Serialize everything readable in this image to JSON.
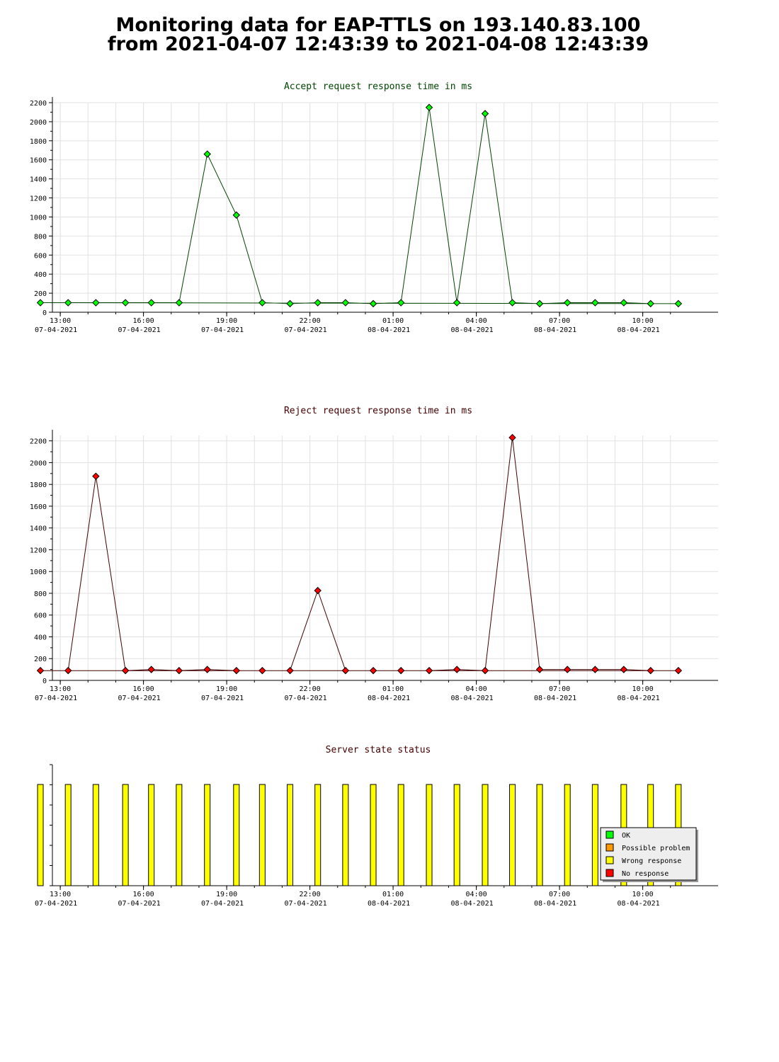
{
  "page": {
    "title_line1": "Monitoring data for EAP-TTLS on 193.140.83.100",
    "title_line2": "from 2021-04-07 12:43:39 to 2021-04-08 12:43:39"
  },
  "chart_data": [
    {
      "type": "line",
      "title": "Accept request response time in ms",
      "title_color": "#004400",
      "line_color": "#004400",
      "marker_color": "#00ff00",
      "xlabel": "",
      "ylabel": "",
      "x_start": "07-04-2021 12:43",
      "x_end": "08-04-2021 12:43",
      "x_ticks": [
        {
          "time": "13:00",
          "date": "07-04-2021"
        },
        {
          "time": "16:00",
          "date": "07-04-2021"
        },
        {
          "time": "19:00",
          "date": "07-04-2021"
        },
        {
          "time": "22:00",
          "date": "07-04-2021"
        },
        {
          "time": "01:00",
          "date": "08-04-2021"
        },
        {
          "time": "04:00",
          "date": "08-04-2021"
        },
        {
          "time": "07:00",
          "date": "08-04-2021"
        },
        {
          "time": "10:00",
          "date": "08-04-2021"
        }
      ],
      "y_ticks": [
        0,
        200,
        400,
        600,
        800,
        1000,
        1200,
        1400,
        1600,
        1800,
        2000,
        2200
      ],
      "ylim": [
        0,
        2200
      ],
      "grid": true,
      "series": [
        {
          "points": [
            {
              "x": "13:17",
              "y": 100
            },
            {
              "x": "14:17",
              "y": 100
            },
            {
              "x": "15:21",
              "y": 100
            },
            {
              "x": "16:17",
              "y": 100
            },
            {
              "x": "17:17",
              "y": 100
            },
            {
              "x": "18:18",
              "y": 1660
            },
            {
              "x": "19:21",
              "y": 1020
            },
            {
              "x": "20:17",
              "y": 100
            },
            {
              "x": "21:17",
              "y": 90
            },
            {
              "x": "22:17",
              "y": 100
            },
            {
              "x": "23:17",
              "y": 100
            },
            {
              "x": "00:17",
              "y": 90
            },
            {
              "x": "01:17",
              "y": 100
            },
            {
              "x": "02:18",
              "y": 2150
            },
            {
              "x": "03:18",
              "y": 100
            },
            {
              "x": "04:19",
              "y": 2085
            },
            {
              "x": "05:18",
              "y": 100
            },
            {
              "x": "06:17",
              "y": 90
            },
            {
              "x": "07:17",
              "y": 100
            },
            {
              "x": "08:17",
              "y": 100
            },
            {
              "x": "09:19",
              "y": 100
            },
            {
              "x": "10:17",
              "y": 90
            },
            {
              "x": "11:17",
              "y": 90
            },
            {
              "x": "12:17",
              "y": 100
            }
          ]
        }
      ]
    },
    {
      "type": "line",
      "title": "Reject request response time in ms",
      "title_color": "#440000",
      "line_color": "#440000",
      "marker_color": "#ff0000",
      "xlabel": "",
      "ylabel": "",
      "x_start": "07-04-2021 12:43",
      "x_end": "08-04-2021 12:43",
      "x_ticks": [
        {
          "time": "13:00",
          "date": "07-04-2021"
        },
        {
          "time": "16:00",
          "date": "07-04-2021"
        },
        {
          "time": "19:00",
          "date": "07-04-2021"
        },
        {
          "time": "22:00",
          "date": "07-04-2021"
        },
        {
          "time": "01:00",
          "date": "08-04-2021"
        },
        {
          "time": "04:00",
          "date": "08-04-2021"
        },
        {
          "time": "07:00",
          "date": "08-04-2021"
        },
        {
          "time": "10:00",
          "date": "08-04-2021"
        }
      ],
      "y_ticks": [
        0,
        200,
        400,
        600,
        800,
        1000,
        1200,
        1400,
        1600,
        1800,
        2000,
        2200
      ],
      "ylim": [
        0,
        2250
      ],
      "grid": true,
      "series": [
        {
          "points": [
            {
              "x": "13:17",
              "y": 90
            },
            {
              "x": "14:17",
              "y": 1875
            },
            {
              "x": "15:21",
              "y": 90
            },
            {
              "x": "16:17",
              "y": 100
            },
            {
              "x": "17:17",
              "y": 90
            },
            {
              "x": "18:18",
              "y": 100
            },
            {
              "x": "19:21",
              "y": 90
            },
            {
              "x": "20:17",
              "y": 90
            },
            {
              "x": "21:17",
              "y": 90
            },
            {
              "x": "22:17",
              "y": 825
            },
            {
              "x": "23:17",
              "y": 90
            },
            {
              "x": "00:17",
              "y": 90
            },
            {
              "x": "01:17",
              "y": 90
            },
            {
              "x": "02:18",
              "y": 90
            },
            {
              "x": "03:18",
              "y": 100
            },
            {
              "x": "04:19",
              "y": 90
            },
            {
              "x": "05:18",
              "y": 2230
            },
            {
              "x": "06:17",
              "y": 100
            },
            {
              "x": "07:17",
              "y": 100
            },
            {
              "x": "08:17",
              "y": 100
            },
            {
              "x": "09:19",
              "y": 100
            },
            {
              "x": "10:17",
              "y": 90
            },
            {
              "x": "11:17",
              "y": 90
            },
            {
              "x": "12:17",
              "y": 90
            }
          ]
        }
      ]
    },
    {
      "type": "bar",
      "title": "Server state status",
      "title_color": "#440000",
      "xlabel": "",
      "ylabel": "",
      "x_start": "07-04-2021 12:43",
      "x_end": "08-04-2021 12:43",
      "x_ticks": [
        {
          "time": "13:00",
          "date": "07-04-2021"
        },
        {
          "time": "16:00",
          "date": "07-04-2021"
        },
        {
          "time": "19:00",
          "date": "07-04-2021"
        },
        {
          "time": "22:00",
          "date": "07-04-2021"
        },
        {
          "time": "01:00",
          "date": "08-04-2021"
        },
        {
          "time": "04:00",
          "date": "08-04-2021"
        },
        {
          "time": "07:00",
          "date": "08-04-2021"
        },
        {
          "time": "10:00",
          "date": "08-04-2021"
        }
      ],
      "legend": {
        "placement": "bottom-right",
        "items": [
          {
            "label": "OK",
            "color": "#00ff00"
          },
          {
            "label": "Possible problem",
            "color": "#ff9900"
          },
          {
            "label": "Wrong response",
            "color": "#ffff00"
          },
          {
            "label": "No response",
            "color": "#ff0000"
          }
        ]
      },
      "bars": [
        {
          "x": "13:17",
          "state": "Wrong response"
        },
        {
          "x": "14:17",
          "state": "Wrong response"
        },
        {
          "x": "15:21",
          "state": "Wrong response"
        },
        {
          "x": "16:17",
          "state": "Wrong response"
        },
        {
          "x": "17:17",
          "state": "Wrong response"
        },
        {
          "x": "18:18",
          "state": "Wrong response"
        },
        {
          "x": "19:21",
          "state": "Wrong response"
        },
        {
          "x": "20:17",
          "state": "Wrong response"
        },
        {
          "x": "21:17",
          "state": "Wrong response"
        },
        {
          "x": "22:17",
          "state": "Wrong response"
        },
        {
          "x": "23:17",
          "state": "Wrong response"
        },
        {
          "x": "00:17",
          "state": "Wrong response"
        },
        {
          "x": "01:17",
          "state": "Wrong response"
        },
        {
          "x": "02:18",
          "state": "Wrong response"
        },
        {
          "x": "03:18",
          "state": "Wrong response"
        },
        {
          "x": "04:19",
          "state": "Wrong response"
        },
        {
          "x": "05:18",
          "state": "Wrong response"
        },
        {
          "x": "06:17",
          "state": "Wrong response"
        },
        {
          "x": "07:17",
          "state": "Wrong response"
        },
        {
          "x": "08:17",
          "state": "Wrong response"
        },
        {
          "x": "09:19",
          "state": "Wrong response"
        },
        {
          "x": "10:17",
          "state": "Wrong response"
        },
        {
          "x": "11:17",
          "state": "Wrong response"
        },
        {
          "x": "12:17",
          "state": "Wrong response"
        }
      ]
    }
  ]
}
